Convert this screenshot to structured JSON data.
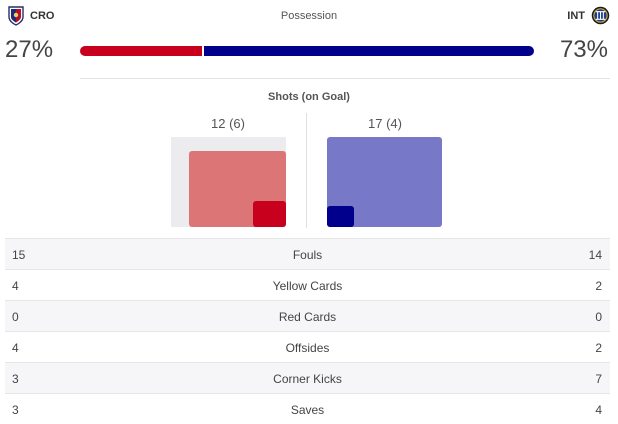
{
  "header": {
    "title": "Possession",
    "home_team": "CRO",
    "away_team": "INT",
    "home_crest": "crotone-crest-icon",
    "away_crest": "inter-crest-icon"
  },
  "possession": {
    "home_label": "27%",
    "away_label": "73%",
    "home": 27,
    "away": 73
  },
  "shots": {
    "title": "Shots (on Goal)",
    "home_label": "12 (6)",
    "away_label": "17 (4)",
    "home_shots": 12,
    "home_on_goal": 6,
    "away_shots": 17,
    "away_on_goal": 4
  },
  "stats": [
    {
      "label": "Fouls",
      "home": "15",
      "away": "14"
    },
    {
      "label": "Yellow Cards",
      "home": "4",
      "away": "2"
    },
    {
      "label": "Red Cards",
      "home": "0",
      "away": "0"
    },
    {
      "label": "Offsides",
      "home": "4",
      "away": "2"
    },
    {
      "label": "Corner Kicks",
      "home": "3",
      "away": "7"
    },
    {
      "label": "Saves",
      "home": "3",
      "away": "4"
    }
  ],
  "colors": {
    "home_primary": "#c8001e",
    "home_light": "#dc7676",
    "away_primary": "#00008c",
    "away_light": "#7878c8"
  }
}
